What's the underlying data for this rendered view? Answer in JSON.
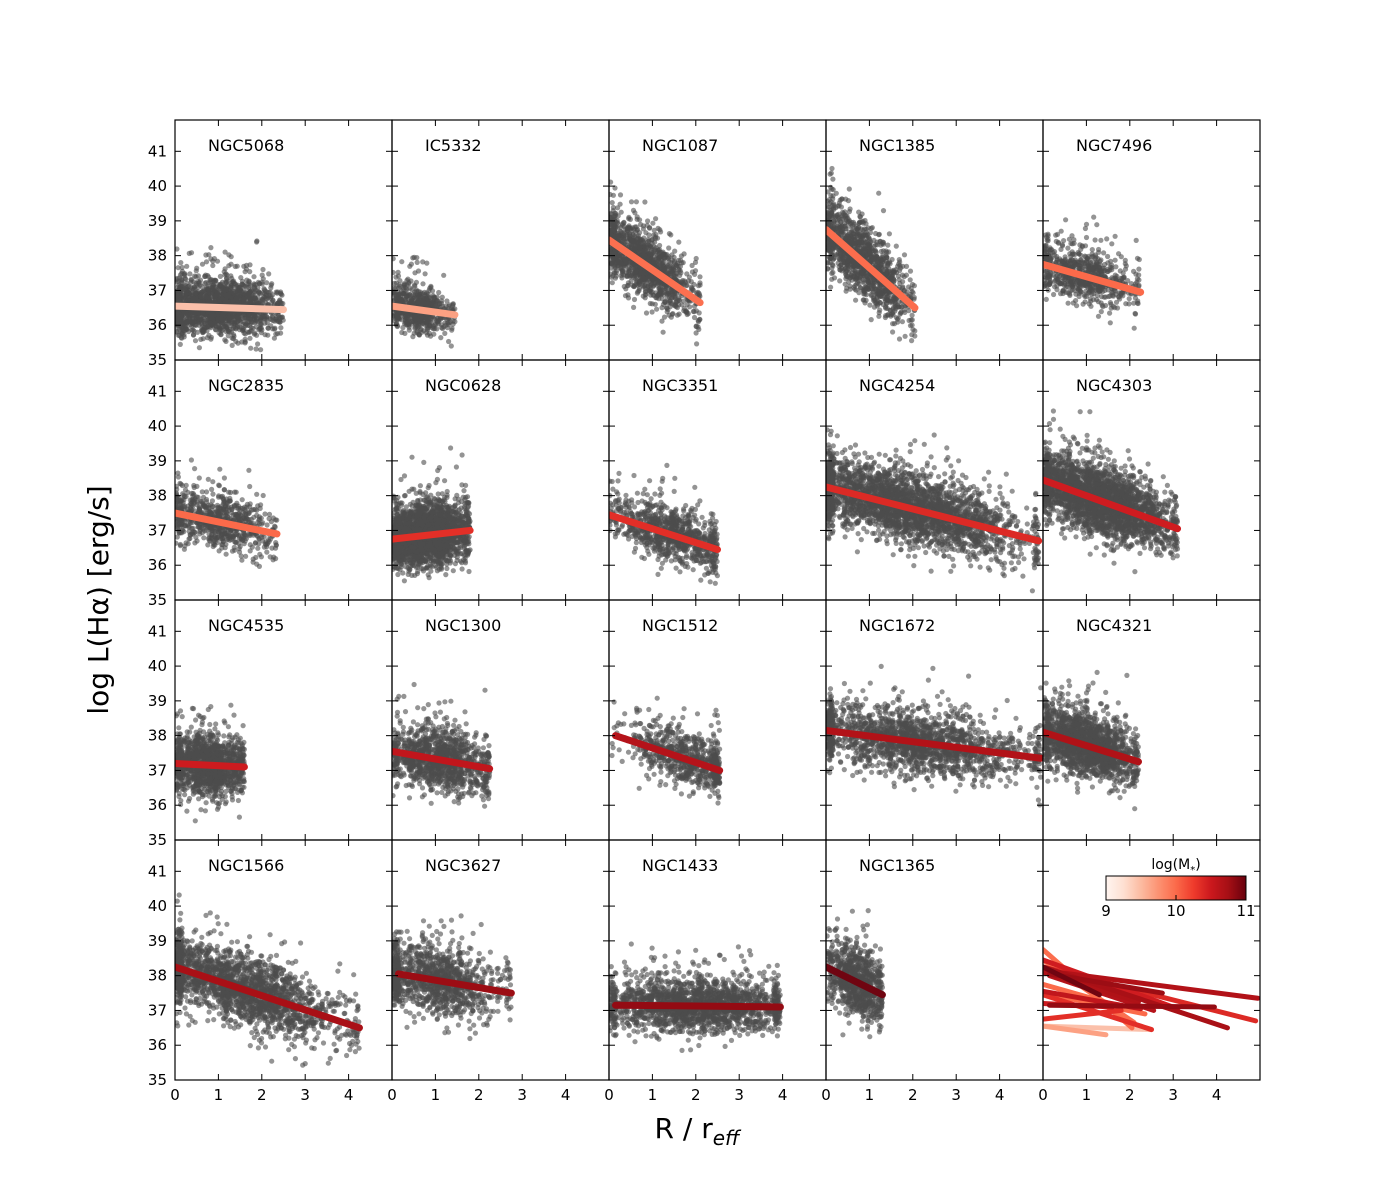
{
  "chart_data": {
    "type": "scatter",
    "layout": "4x5 grid of small-multiple scatter panels with linear fits",
    "xlabel": "R / r",
    "xlabel_subscript": "eff",
    "ylabel": "log L(Hα) [erg/s]",
    "xlim": [
      0,
      5
    ],
    "ylim": [
      35,
      41.9
    ],
    "xticks": [
      "0",
      "1",
      "2",
      "3",
      "4"
    ],
    "yticks": [
      "35",
      "36",
      "37",
      "38",
      "39",
      "40",
      "41"
    ],
    "points_color": "#4d4d4d",
    "panels": [
      {
        "name": "NGC5068",
        "mstar": 9.4,
        "color": "#fbc0aa",
        "fit": {
          "x0": 0.0,
          "y0": 36.55,
          "x1": 2.5,
          "y1": 36.45
        },
        "cloud": {
          "x_max": 2.5,
          "x_center": 1.0,
          "y_center": 36.5,
          "y_spread": 0.7,
          "n": 1800
        }
      },
      {
        "name": "IC5332",
        "mstar": 9.67,
        "color": "#fca183",
        "fit": {
          "x0": 0.0,
          "y0": 36.55,
          "x1": 1.45,
          "y1": 36.3
        },
        "cloud": {
          "x_max": 1.45,
          "x_center": 0.6,
          "y_center": 36.5,
          "y_spread": 0.6,
          "n": 700
        }
      },
      {
        "name": "NGC1087",
        "mstar": 9.94,
        "color": "#fb7050",
        "fit": {
          "x0": 0.0,
          "y0": 38.45,
          "x1": 2.1,
          "y1": 36.65
        },
        "cloud": {
          "x_max": 2.1,
          "x_center": 0.8,
          "y_center": 37.6,
          "y_spread": 0.8,
          "n": 1300
        }
      },
      {
        "name": "NGC1385",
        "mstar": 9.98,
        "color": "#fb6d4d",
        "fit": {
          "x0": 0.0,
          "y0": 38.75,
          "x1": 2.05,
          "y1": 36.5
        },
        "cloud": {
          "x_max": 2.05,
          "x_center": 0.8,
          "y_center": 37.8,
          "y_spread": 0.9,
          "n": 1300
        }
      },
      {
        "name": "NGC7496",
        "mstar": 9.99,
        "color": "#fb6a4a",
        "fit": {
          "x0": 0.0,
          "y0": 37.75,
          "x1": 2.25,
          "y1": 36.95
        },
        "cloud": {
          "x_max": 2.25,
          "x_center": 1.0,
          "y_center": 37.5,
          "y_spread": 0.7,
          "n": 700
        }
      },
      {
        "name": "NGC2835",
        "mstar": 10.0,
        "color": "#fb6a4a",
        "fit": {
          "x0": 0.0,
          "y0": 37.5,
          "x1": 2.35,
          "y1": 36.9
        },
        "cloud": {
          "x_max": 2.35,
          "x_center": 1.0,
          "y_center": 37.3,
          "y_spread": 0.7,
          "n": 800
        }
      },
      {
        "name": "NGC0628",
        "mstar": 10.34,
        "color": "#e32f27",
        "fit": {
          "x0": 0.0,
          "y0": 36.75,
          "x1": 1.8,
          "y1": 37.0
        },
        "cloud": {
          "x_max": 1.8,
          "x_center": 0.8,
          "y_center": 36.8,
          "y_spread": 0.8,
          "n": 2200
        }
      },
      {
        "name": "NGC3351",
        "mstar": 10.36,
        "color": "#e22e27",
        "fit": {
          "x0": 0.0,
          "y0": 37.45,
          "x1": 2.5,
          "y1": 36.45
        },
        "cloud": {
          "x_max": 2.5,
          "x_center": 1.4,
          "y_center": 37.0,
          "y_spread": 0.7,
          "n": 900
        }
      },
      {
        "name": "NGC4254",
        "mstar": 10.42,
        "color": "#dc2a25",
        "fit": {
          "x0": 0.0,
          "y0": 38.25,
          "x1": 4.9,
          "y1": 36.7
        },
        "cloud": {
          "x_max": 4.9,
          "x_center": 1.8,
          "y_center": 37.6,
          "y_spread": 0.9,
          "n": 2800
        }
      },
      {
        "name": "NGC4303",
        "mstar": 10.52,
        "color": "#cf1c20",
        "fit": {
          "x0": 0.0,
          "y0": 38.45,
          "x1": 3.1,
          "y1": 37.05
        },
        "cloud": {
          "x_max": 3.1,
          "x_center": 1.3,
          "y_center": 37.8,
          "y_spread": 0.9,
          "n": 2500
        }
      },
      {
        "name": "NGC4535",
        "mstar": 10.53,
        "color": "#cd1b1f",
        "fit": {
          "x0": 0.0,
          "y0": 37.2,
          "x1": 1.6,
          "y1": 37.1
        },
        "cloud": {
          "x_max": 1.6,
          "x_center": 0.75,
          "y_center": 37.2,
          "y_spread": 0.8,
          "n": 1300
        }
      },
      {
        "name": "NGC1300",
        "mstar": 10.62,
        "color": "#c1161c",
        "fit": {
          "x0": 0.0,
          "y0": 37.55,
          "x1": 2.25,
          "y1": 37.05
        },
        "cloud": {
          "x_max": 2.25,
          "x_center": 1.1,
          "y_center": 37.4,
          "y_spread": 0.8,
          "n": 1100
        }
      },
      {
        "name": "NGC1512",
        "mstar": 10.71,
        "color": "#b5131a",
        "fit": {
          "x0": 0.15,
          "y0": 38.0,
          "x1": 2.55,
          "y1": 37.0
        },
        "cloud": {
          "x_max": 2.55,
          "x_center": 1.8,
          "y_center": 37.5,
          "y_spread": 0.7,
          "n": 700
        }
      },
      {
        "name": "NGC1672",
        "mstar": 10.73,
        "color": "#b21218",
        "fit": {
          "x0": 0.0,
          "y0": 38.15,
          "x1": 4.95,
          "y1": 37.35
        },
        "cloud": {
          "x_max": 4.95,
          "x_center": 2.0,
          "y_center": 37.6,
          "y_spread": 0.8,
          "n": 1800
        }
      },
      {
        "name": "NGC4321",
        "mstar": 10.75,
        "color": "#b01217",
        "fit": {
          "x0": 0.0,
          "y0": 38.1,
          "x1": 2.2,
          "y1": 37.25
        },
        "cloud": {
          "x_max": 2.2,
          "x_center": 1.0,
          "y_center": 37.6,
          "y_spread": 0.8,
          "n": 1700
        }
      },
      {
        "name": "NGC1566",
        "mstar": 10.78,
        "color": "#a91016",
        "fit": {
          "x0": 0.0,
          "y0": 38.25,
          "x1": 4.25,
          "y1": 36.5
        },
        "cloud": {
          "x_max": 4.25,
          "x_center": 1.5,
          "y_center": 37.5,
          "y_spread": 0.9,
          "n": 2000
        }
      },
      {
        "name": "NGC3627",
        "mstar": 10.84,
        "color": "#9c0d14",
        "fit": {
          "x0": 0.15,
          "y0": 38.05,
          "x1": 2.75,
          "y1": 37.5
        },
        "cloud": {
          "x_max": 2.75,
          "x_center": 1.0,
          "y_center": 37.8,
          "y_spread": 0.9,
          "n": 1100
        }
      },
      {
        "name": "NGC1433",
        "mstar": 10.87,
        "color": "#940b13",
        "fit": {
          "x0": 0.15,
          "y0": 37.15,
          "x1": 3.95,
          "y1": 37.1
        },
        "cloud": {
          "x_max": 3.95,
          "x_center": 2.0,
          "y_center": 37.1,
          "y_spread": 0.7,
          "n": 1800
        }
      },
      {
        "name": "NGC1365",
        "mstar": 11.0,
        "color": "#700511",
        "fit": {
          "x0": 0.0,
          "y0": 38.25,
          "x1": 1.3,
          "y1": 37.45
        },
        "cloud": {
          "x_max": 1.3,
          "x_center": 0.7,
          "y_center": 37.8,
          "y_spread": 0.9,
          "n": 800
        }
      }
    ],
    "colorbar": {
      "label": "log(M",
      "label_subscript": "*",
      "label_close": ")",
      "range": [
        9,
        11
      ],
      "ticks": [
        "9",
        "10",
        "11"
      ],
      "colormap": "Reds",
      "stops": [
        "#fff5f0",
        "#fee0d2",
        "#fcbba1",
        "#fc9272",
        "#fb6a4a",
        "#ef3b2c",
        "#cb181d",
        "#a50f15",
        "#67000d"
      ]
    }
  }
}
